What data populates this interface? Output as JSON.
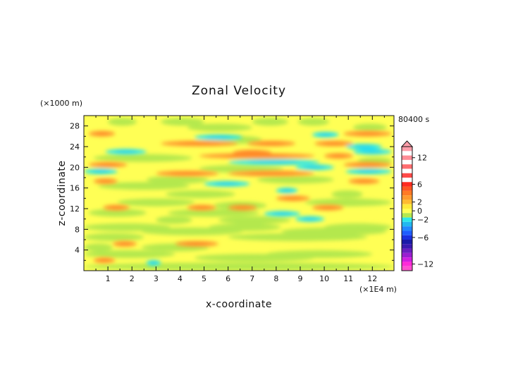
{
  "chart_data": {
    "type": "heatmap",
    "title": "Zonal Velocity",
    "xlabel": "x-coordinate",
    "ylabel": "z-coordinate",
    "x_unit": "(×1E4 m)",
    "y_unit": "(×1000 m)",
    "time_label": "80400 s",
    "xlim": [
      0,
      12.9
    ],
    "ylim": [
      0,
      30
    ],
    "x_ticks": [
      "1",
      "2",
      "3",
      "4",
      "5",
      "6",
      "7",
      "8",
      "9",
      "10",
      "11",
      "12"
    ],
    "y_ticks": [
      "4",
      "8",
      "12",
      "16",
      "20",
      "24",
      "28"
    ],
    "colorbar_labels": [
      "12",
      "6",
      "2",
      "0",
      "−2",
      "−6",
      "−12"
    ],
    "colorbar": {
      "extend_top": true,
      "levels": [
        {
          "value": 14,
          "color": "#ff9fab"
        },
        {
          "value": 12,
          "color": "#ff8c96"
        },
        {
          "value": 10,
          "color": "#ff6e70"
        },
        {
          "value": 8,
          "color": "#ff4a48"
        },
        {
          "value": 6,
          "color": "#ff2b20"
        },
        {
          "value": 5,
          "color": "#ff5722"
        },
        {
          "value": 4,
          "color": "#ff7a25"
        },
        {
          "value": 3,
          "color": "#ff9a2e"
        },
        {
          "value": 2,
          "color": "#ffbb30"
        },
        {
          "value": 1,
          "color": "#ffea3a"
        },
        {
          "value": 0,
          "color": "#ffff55"
        },
        {
          "value": -1,
          "color": "#b4e84e"
        },
        {
          "value": -2,
          "color": "#2ee8e8"
        },
        {
          "value": -3,
          "color": "#22b8f0"
        },
        {
          "value": -4,
          "color": "#2288ff"
        },
        {
          "value": -5,
          "color": "#1e5dff"
        },
        {
          "value": -6,
          "color": "#1a30e0"
        },
        {
          "value": -7,
          "color": "#1a1aa8"
        },
        {
          "value": -8,
          "color": "#3a1ab0"
        },
        {
          "value": -9,
          "color": "#6a1ec0"
        },
        {
          "value": -10,
          "color": "#9a1ed0"
        },
        {
          "value": -11,
          "color": "#d01ee0"
        },
        {
          "value": -12,
          "color": "#ff2bd8"
        },
        {
          "value": -13,
          "color": "#ff50d0"
        }
      ]
    },
    "bands": [
      {
        "z": 26.5,
        "cover": [
          [
            0.2,
            1.3
          ],
          [
            10.8,
            12.8
          ]
        ],
        "value": 3
      },
      {
        "z": 25.8,
        "cover": [
          [
            4.6,
            6.6
          ]
        ],
        "value": -2
      },
      {
        "z": 26.3,
        "cover": [
          [
            9.5,
            10.6
          ]
        ],
        "value": -2
      },
      {
        "z": 24.6,
        "cover": [
          [
            3.2,
            6.4
          ],
          [
            6.8,
            8.8
          ],
          [
            9.6,
            11.2
          ]
        ],
        "value": 3
      },
      {
        "z": 24.0,
        "cover": [
          [
            10.9,
            12.4
          ]
        ],
        "value": -2
      },
      {
        "z": 23.0,
        "cover": [
          [
            0.9,
            2.6
          ],
          [
            11.2,
            12.8
          ]
        ],
        "value": -2
      },
      {
        "z": 22.8,
        "cover": [
          [
            6.2,
            7.8
          ]
        ],
        "value": 4
      },
      {
        "z": 22.2,
        "cover": [
          [
            4.8,
            9.6
          ],
          [
            10.0,
            11.2
          ]
        ],
        "value": 3
      },
      {
        "z": 21.0,
        "cover": [
          [
            6.0,
            9.8
          ]
        ],
        "value": -2
      },
      {
        "z": 20.5,
        "cover": [
          [
            0.2,
            1.8
          ],
          [
            10.8,
            12.8
          ]
        ],
        "value": 3
      },
      {
        "z": 20.0,
        "cover": [
          [
            8.8,
            10.4
          ]
        ],
        "value": -2
      },
      {
        "z": 19.2,
        "cover": [
          [
            0.0,
            1.4
          ],
          [
            10.9,
            12.8
          ]
        ],
        "value": -2
      },
      {
        "z": 18.8,
        "cover": [
          [
            3.0,
            5.6
          ],
          [
            6.0,
            9.6
          ]
        ],
        "value": 3
      },
      {
        "z": 17.3,
        "cover": [
          [
            0.4,
            1.4
          ],
          [
            11.0,
            12.3
          ]
        ],
        "value": 3
      },
      {
        "z": 16.8,
        "cover": [
          [
            5.0,
            6.9
          ]
        ],
        "value": -2
      },
      {
        "z": 15.5,
        "cover": [
          [
            8.0,
            8.9
          ]
        ],
        "value": -2
      },
      {
        "z": 14.0,
        "cover": [
          [
            8.0,
            9.4
          ]
        ],
        "value": 3
      },
      {
        "z": 12.2,
        "cover": [
          [
            0.8,
            1.9
          ],
          [
            4.3,
            5.5
          ],
          [
            6.0,
            7.2
          ],
          [
            9.5,
            10.8
          ]
        ],
        "value": 3
      },
      {
        "z": 11.0,
        "cover": [
          [
            7.5,
            9.0
          ]
        ],
        "value": -2
      },
      {
        "z": 10.0,
        "cover": [
          [
            8.8,
            10.0
          ]
        ],
        "value": -2
      },
      {
        "z": 5.2,
        "cover": [
          [
            1.2,
            2.2
          ],
          [
            3.8,
            5.6
          ]
        ],
        "value": 3
      },
      {
        "z": 2.0,
        "cover": [
          [
            0.4,
            1.3
          ]
        ],
        "value": 3
      },
      {
        "z": 1.5,
        "cover": [
          [
            2.6,
            3.2
          ]
        ],
        "value": -2
      }
    ],
    "green_zones": [
      {
        "z": 28.8,
        "cover": [
          [
            1.0,
            2.2
          ],
          [
            3.2,
            5.0
          ],
          [
            7.0,
            8.5
          ],
          [
            8.9,
            10.2
          ]
        ]
      },
      {
        "z": 27.7,
        "cover": [
          [
            4.3,
            7.0
          ],
          [
            11.2,
            12.6
          ]
        ]
      },
      {
        "z": 25.3,
        "cover": [
          [
            5.6,
            7.4
          ]
        ]
      },
      {
        "z": 21.8,
        "cover": [
          [
            0.4,
            4.5
          ]
        ]
      },
      {
        "z": 21.2,
        "cover": [
          [
            11.4,
            12.8
          ]
        ]
      },
      {
        "z": 19.7,
        "cover": [
          [
            4.8,
            8.3
          ]
        ]
      },
      {
        "z": 17.6,
        "cover": [
          [
            2.6,
            5.2
          ],
          [
            7.2,
            10.4
          ]
        ]
      },
      {
        "z": 16.4,
        "cover": [
          [
            0.6,
            4.4
          ]
        ]
      },
      {
        "z": 14.8,
        "cover": [
          [
            3.4,
            6.3
          ],
          [
            10.3,
            11.6
          ]
        ]
      },
      {
        "z": 13.2,
        "cover": [
          [
            1.4,
            4.6
          ],
          [
            9.2,
            12.8
          ]
        ]
      },
      {
        "z": 12.6,
        "cover": [
          [
            5.4,
            7.6
          ]
        ]
      },
      {
        "z": 11.2,
        "cover": [
          [
            0.2,
            2.6
          ],
          [
            3.5,
            7.3
          ]
        ]
      },
      {
        "z": 9.8,
        "cover": [
          [
            3.0,
            4.5
          ],
          [
            5.6,
            8.6
          ]
        ]
      },
      {
        "z": 8.4,
        "cover": [
          [
            0.0,
            3.6
          ],
          [
            5.2,
            8.2
          ],
          [
            10.0,
            12.8
          ]
        ]
      },
      {
        "z": 7.6,
        "cover": [
          [
            2.4,
            6.6
          ],
          [
            8.2,
            12.6
          ]
        ]
      },
      {
        "z": 6.5,
        "cover": [
          [
            0.0,
            2.5
          ],
          [
            6.0,
            11.8
          ]
        ]
      },
      {
        "z": 4.5,
        "cover": [
          [
            0.0,
            1.2
          ],
          [
            2.4,
            5.2
          ]
        ]
      },
      {
        "z": 3.2,
        "cover": [
          [
            0.0,
            3.8
          ],
          [
            7.6,
            12.0
          ]
        ]
      },
      {
        "z": 2.5,
        "cover": [
          [
            4.6,
            9.6
          ]
        ]
      },
      {
        "z": 0.8,
        "cover": [
          [
            0.0,
            12.9
          ]
        ]
      }
    ]
  }
}
